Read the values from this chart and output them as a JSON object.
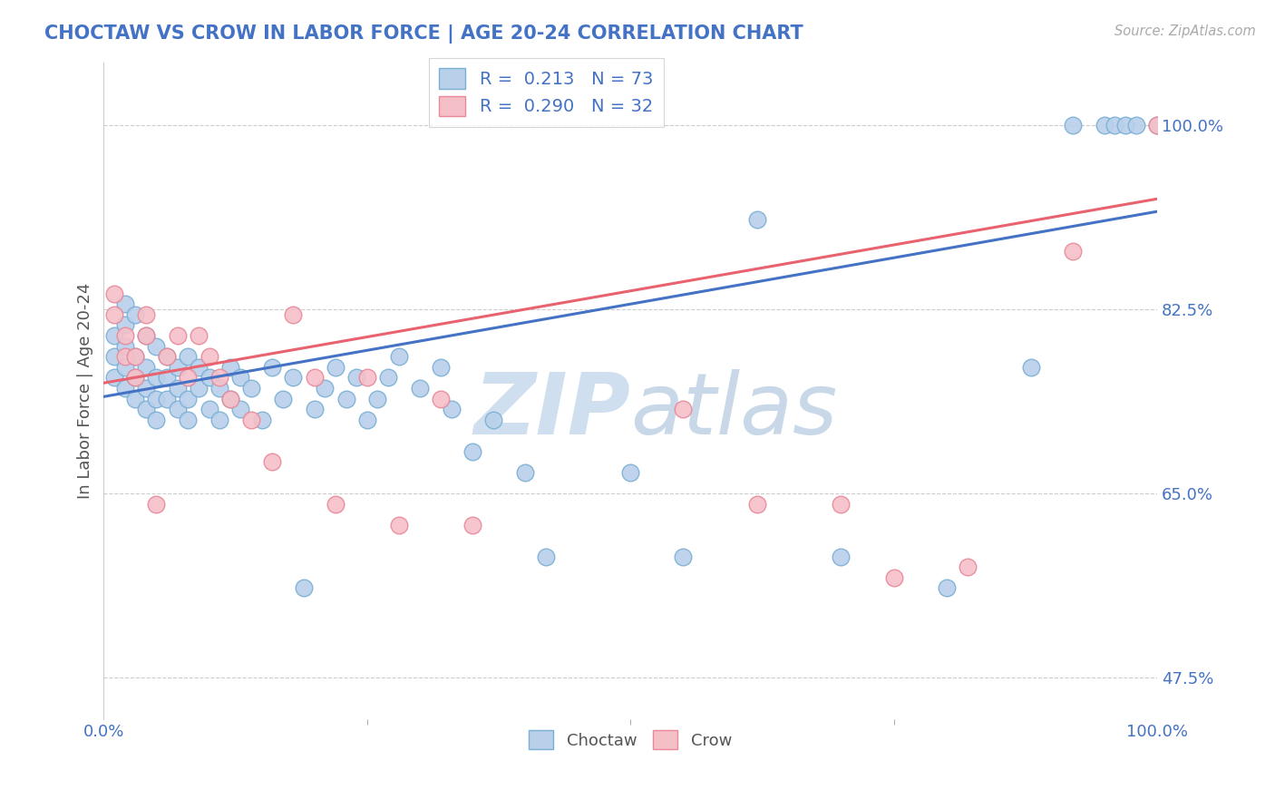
{
  "title": "CHOCTAW VS CROW IN LABOR FORCE | AGE 20-24 CORRELATION CHART",
  "source_text": "Source: ZipAtlas.com",
  "ylabel": "In Labor Force | Age 20-24",
  "xlim": [
    0.0,
    1.0
  ],
  "ylim": [
    0.435,
    1.06
  ],
  "yticks": [
    0.475,
    0.65,
    0.825,
    1.0
  ],
  "ytick_labels": [
    "47.5%",
    "65.0%",
    "82.5%",
    "100.0%"
  ],
  "xticks": [
    0.0,
    1.0
  ],
  "xtick_labels": [
    "0.0%",
    "100.0%"
  ],
  "choctaw_R": 0.213,
  "choctaw_N": 73,
  "crow_R": 0.29,
  "crow_N": 32,
  "choctaw_color": "#b8d0ea",
  "choctaw_edge": "#7aafd4",
  "crow_color": "#f5bfc8",
  "crow_edge": "#e88898",
  "line_choctaw": "#4472c4",
  "line_crow": "#e8636f",
  "watermark_color": "#d0dff0",
  "background_color": "#ffffff",
  "choctaw_x": [
    0.01,
    0.01,
    0.01,
    0.02,
    0.02,
    0.02,
    0.02,
    0.02,
    0.03,
    0.03,
    0.03,
    0.03,
    0.04,
    0.04,
    0.04,
    0.04,
    0.05,
    0.05,
    0.05,
    0.05,
    0.06,
    0.06,
    0.06,
    0.07,
    0.07,
    0.07,
    0.08,
    0.08,
    0.08,
    0.09,
    0.09,
    0.1,
    0.1,
    0.11,
    0.11,
    0.12,
    0.12,
    0.13,
    0.13,
    0.14,
    0.15,
    0.16,
    0.17,
    0.18,
    0.19,
    0.2,
    0.21,
    0.22,
    0.23,
    0.24,
    0.25,
    0.26,
    0.27,
    0.28,
    0.3,
    0.32,
    0.33,
    0.35,
    0.37,
    0.4,
    0.42,
    0.5,
    0.55,
    0.62,
    0.7,
    0.8,
    0.88,
    0.92,
    0.95,
    0.96,
    0.97,
    0.98,
    1.0
  ],
  "choctaw_y": [
    0.76,
    0.78,
    0.8,
    0.75,
    0.77,
    0.79,
    0.81,
    0.83,
    0.74,
    0.76,
    0.78,
    0.82,
    0.73,
    0.75,
    0.77,
    0.8,
    0.72,
    0.74,
    0.76,
    0.79,
    0.74,
    0.76,
    0.78,
    0.73,
    0.75,
    0.77,
    0.72,
    0.74,
    0.78,
    0.75,
    0.77,
    0.73,
    0.76,
    0.72,
    0.75,
    0.74,
    0.77,
    0.73,
    0.76,
    0.75,
    0.72,
    0.77,
    0.74,
    0.76,
    0.56,
    0.73,
    0.75,
    0.77,
    0.74,
    0.76,
    0.72,
    0.74,
    0.76,
    0.78,
    0.75,
    0.77,
    0.73,
    0.69,
    0.72,
    0.67,
    0.59,
    0.67,
    0.59,
    0.91,
    0.59,
    0.56,
    0.77,
    1.0,
    1.0,
    1.0,
    1.0,
    1.0,
    1.0
  ],
  "crow_x": [
    0.01,
    0.01,
    0.02,
    0.02,
    0.03,
    0.03,
    0.04,
    0.04,
    0.05,
    0.06,
    0.07,
    0.08,
    0.09,
    0.1,
    0.11,
    0.12,
    0.14,
    0.16,
    0.18,
    0.2,
    0.22,
    0.25,
    0.28,
    0.32,
    0.35,
    0.55,
    0.62,
    0.7,
    0.75,
    0.82,
    0.92,
    1.0
  ],
  "crow_y": [
    0.82,
    0.84,
    0.78,
    0.8,
    0.76,
    0.78,
    0.8,
    0.82,
    0.64,
    0.78,
    0.8,
    0.76,
    0.8,
    0.78,
    0.76,
    0.74,
    0.72,
    0.68,
    0.82,
    0.76,
    0.64,
    0.76,
    0.62,
    0.74,
    0.62,
    0.73,
    0.64,
    0.64,
    0.57,
    0.58,
    0.88,
    1.0
  ],
  "blue_line_x0": 0.0,
  "blue_line_y0": 0.742,
  "blue_line_x1": 1.0,
  "blue_line_y1": 0.918,
  "pink_line_x0": 0.0,
  "pink_line_y0": 0.755,
  "pink_line_x1": 1.0,
  "pink_line_y1": 0.93
}
